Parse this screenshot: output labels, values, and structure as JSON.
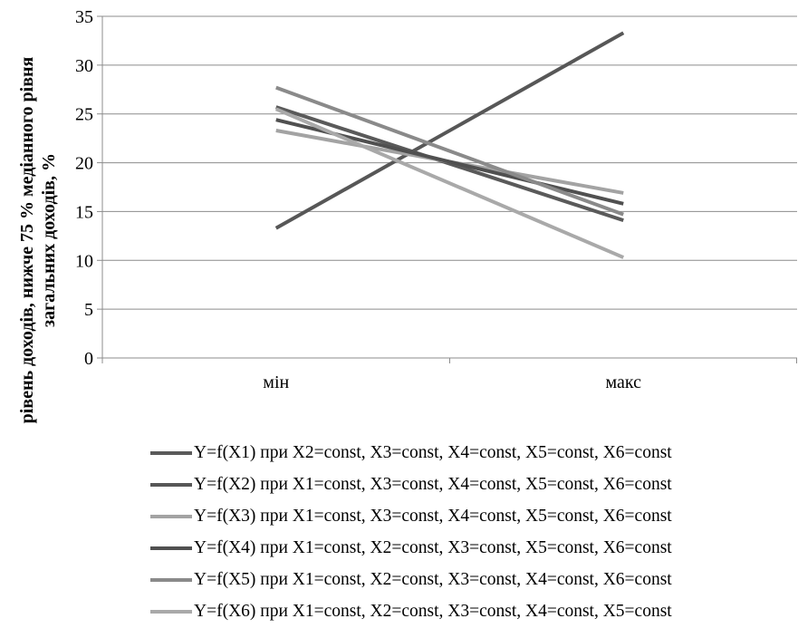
{
  "chart_data": {
    "type": "line",
    "categories": [
      "мін",
      "макс"
    ],
    "ylim": [
      0,
      35
    ],
    "yticks": [
      0,
      5,
      10,
      15,
      20,
      25,
      30,
      35
    ],
    "ylabel_line1": "рівень доходів, нижче 75 % медіанного рівня",
    "ylabel_line2": "загальних доходів, %",
    "grid": true,
    "legend_position": "bottom",
    "series": [
      {
        "name": "Y=f(X1) при X2=const, X3=const, X4=const, X5=const, X6=const",
        "values": [
          25.7,
          14.1
        ],
        "color": "#5a5a5a"
      },
      {
        "name": "Y=f(X2) при X1=const, X3=const, X4=const, X5=const, X6=const",
        "values": [
          13.3,
          33.3
        ],
        "color": "#575757"
      },
      {
        "name": "Y=f(X3) при X1=const, X3=const, X4=const, X5=const, X6=const",
        "values": [
          23.3,
          16.9
        ],
        "color": "#a3a3a3"
      },
      {
        "name": "Y=f(X4) при X1=const, X2=const, X3=const, X5=const, X6=const",
        "values": [
          24.4,
          15.8
        ],
        "color": "#505050"
      },
      {
        "name": "Y=f(X5) при X1=const, X2=const, X3=const, X4=const, X6=const",
        "values": [
          27.7,
          14.7
        ],
        "color": "#8a8a8a"
      },
      {
        "name": "Y=f(X6) при X1=const, X2=const, X3=const, X4=const, X5=const",
        "values": [
          25.5,
          10.3
        ],
        "color": "#a9a9a9"
      }
    ]
  }
}
